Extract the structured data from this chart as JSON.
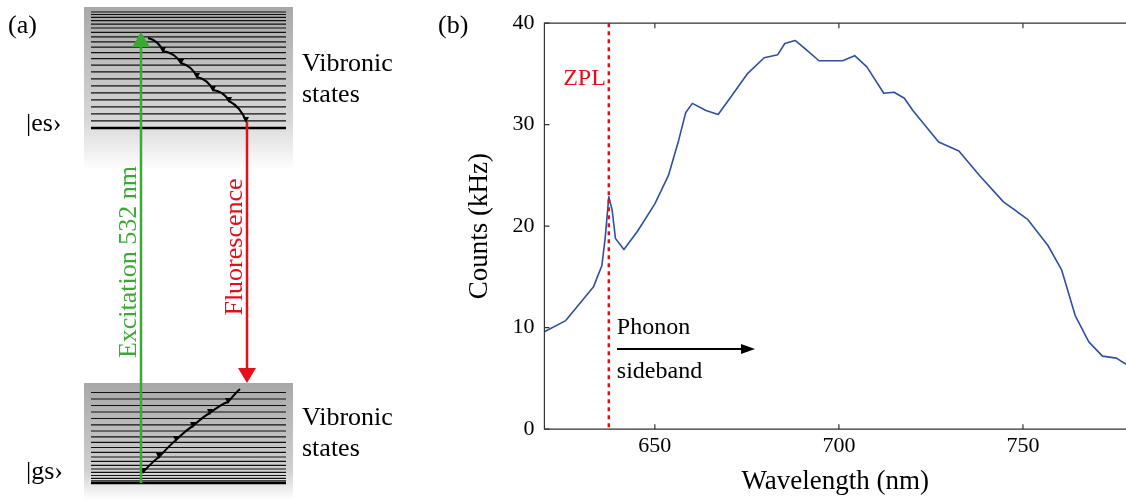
{
  "chart_data": [
    {
      "type": "other",
      "title": "(a)",
      "annotations": [
        "|es›",
        "|gs›",
        "Vibronic states",
        "Vibronic states",
        "Excitation 532 nm",
        "Fluorescence"
      ]
    },
    {
      "type": "line",
      "title": "(b)",
      "xlabel": "Wavelength (nm)",
      "ylabel": "Counts (kHz)",
      "x": [
        620,
        625.8,
        633.3,
        635.6,
        636.5,
        637.5,
        638.4,
        639.3,
        641.6,
        645.3,
        650,
        653.7,
        656.5,
        658.4,
        660.2,
        663.9,
        667.2,
        670.4,
        675.1,
        679.7,
        683.4,
        685.3,
        688.1,
        690.8,
        694.6,
        698,
        701,
        704.3,
        707.6,
        712.2,
        715,
        717.8,
        720.1,
        727.1,
        732.6,
        738.2,
        744.7,
        751.2,
        756.8,
        760.5,
        764.2,
        767.9,
        771.6,
        775.4,
        778
      ],
      "series": [
        {
          "color": "#2e4fa3",
          "values": [
            9.6,
            10.7,
            14.0,
            16.1,
            18.8,
            22.9,
            21.6,
            18.8,
            17.7,
            19.5,
            22.2,
            25.0,
            28.5,
            31.2,
            32.1,
            31.4,
            31.0,
            32.6,
            35.0,
            36.6,
            36.9,
            38.0,
            38.3,
            37.5,
            36.3,
            36.3,
            36.3,
            36.8,
            35.7,
            33.1,
            33.2,
            32.6,
            31.4,
            28.3,
            27.4,
            25.0,
            22.4,
            20.7,
            18.1,
            15.7,
            11.2,
            8.6,
            7.2,
            7.0,
            6.4
          ]
        }
      ],
      "xlim": [
        620,
        778
      ],
      "xticks": [
        650,
        700,
        750
      ],
      "ylim": [
        0,
        40
      ],
      "yticks": [
        0,
        10,
        20,
        30,
        40
      ],
      "ref_lines": [
        {
          "axis": "x",
          "value": 637.5,
          "label": "ZPL",
          "color": "#e3101a",
          "line_style": "dotted"
        }
      ],
      "annotations": [
        "Phonon sideband"
      ]
    }
  ]
}
